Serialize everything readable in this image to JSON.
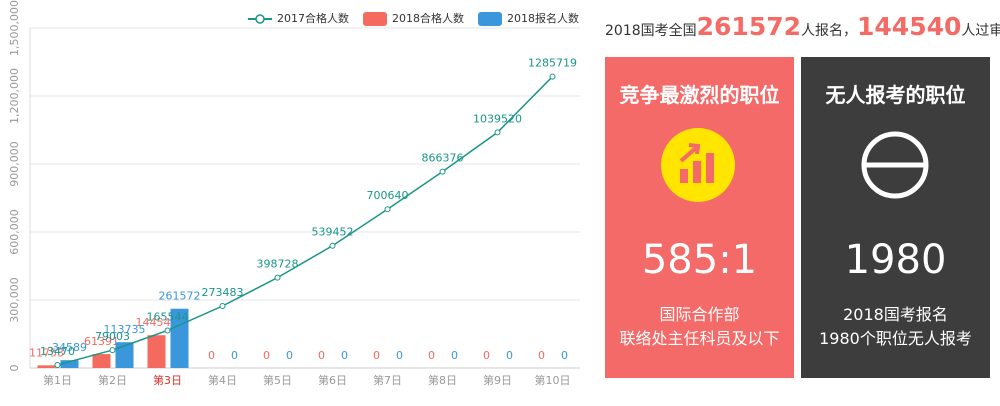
{
  "chart_data": {
    "type": "bar-line",
    "categories": [
      "第1日",
      "第2日",
      "第3日",
      "第4日",
      "第5日",
      "第6日",
      "第7日",
      "第8日",
      "第9日",
      "第10日"
    ],
    "series": [
      {
        "name": "2017合格人数",
        "type": "line",
        "color": "#1a958a",
        "values": [
          13470,
          79003,
          165544,
          273483,
          398728,
          539452,
          700640,
          866376,
          1039520,
          1285719
        ]
      },
      {
        "name": "2018合格人数",
        "type": "bar",
        "color": "#f46a5f",
        "values": [
          11753,
          61391,
          144540,
          0,
          0,
          0,
          0,
          0,
          0,
          0
        ]
      },
      {
        "name": "2018报名人数",
        "type": "bar",
        "color": "#3a97db",
        "values": [
          34589,
          113735,
          261572,
          0,
          0,
          0,
          0,
          0,
          0,
          0
        ]
      }
    ],
    "ylim": [
      0,
      1500000
    ],
    "yticks": [
      0,
      {
        "value": 300000,
        "label": "300,000"
      },
      {
        "value": 600000,
        "label": "600,000"
      },
      {
        "value": 900000,
        "label": "900,000"
      },
      {
        "value": 1200000,
        "label": "1,200,000"
      },
      {
        "value": 1500000,
        "label": "1,500,000"
      }
    ],
    "grid": true,
    "legend": "top",
    "highlight_index": 2,
    "highlight_color": "#d9332b"
  },
  "summary": {
    "prefix": "2018国考全国",
    "applicants": "261572",
    "mid": "人报名，",
    "approved": "144540",
    "suffix": "人过审"
  },
  "cards": [
    {
      "title": "竞争最激烈的职位",
      "value": "585:1",
      "lines": [
        "国际合作部",
        "联络处主任科员及以下"
      ],
      "color": "#f36a68"
    },
    {
      "title": "无人报考的职位",
      "value": "1980",
      "lines": [
        "2018国考报名",
        "1980个职位无人报考"
      ],
      "color": "#3d3d3d"
    }
  ]
}
